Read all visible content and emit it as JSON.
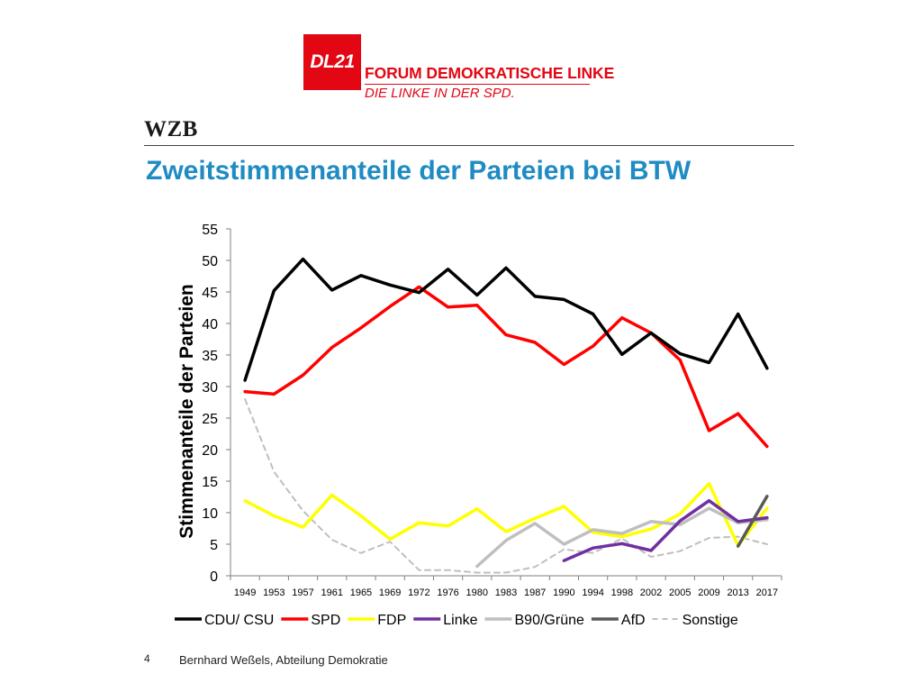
{
  "logo": {
    "mark": "DL21",
    "title": "FORUM DEMOKRATISCHE LINKE",
    "subtitle": "DIE LINKE IN DER SPD.",
    "color": "#e30613"
  },
  "header": {
    "org": "WZB"
  },
  "page_title": "Zweitstimmenanteile der Parteien bei BTW",
  "footer": {
    "page_number": "4",
    "author": "Bernhard Weßels, Abteilung Demokratie"
  },
  "chart_data": {
    "type": "line",
    "title": "",
    "xlabel": "",
    "ylabel": "Stimmenanteile der Parteien",
    "ylim": [
      0,
      55
    ],
    "yticks": [
      0,
      5,
      10,
      15,
      20,
      25,
      30,
      35,
      40,
      45,
      50,
      55
    ],
    "grid": false,
    "legend_position": "bottom",
    "categories": [
      "1949",
      "1953",
      "1957",
      "1961",
      "1965",
      "1969",
      "1972",
      "1976",
      "1980",
      "1983",
      "1987",
      "1990",
      "1994",
      "1998",
      "2002",
      "2005",
      "2009",
      "2013",
      "2017"
    ],
    "series": [
      {
        "name": "CDU/ CSU",
        "color": "#000000",
        "dashed": false,
        "values": [
          31.0,
          45.2,
          50.2,
          45.3,
          47.6,
          46.1,
          44.9,
          48.6,
          44.5,
          48.8,
          44.3,
          43.8,
          41.5,
          35.1,
          38.5,
          35.2,
          33.8,
          41.5,
          32.9
        ]
      },
      {
        "name": "SPD",
        "color": "#ff0000",
        "dashed": false,
        "values": [
          29.2,
          28.8,
          31.8,
          36.2,
          39.3,
          42.7,
          45.8,
          42.6,
          42.9,
          38.2,
          37.0,
          33.5,
          36.4,
          40.9,
          38.5,
          34.2,
          23.0,
          25.7,
          20.5
        ]
      },
      {
        "name": "FDP",
        "color": "#ffff00",
        "dashed": false,
        "values": [
          11.9,
          9.5,
          7.7,
          12.8,
          9.5,
          5.8,
          8.4,
          7.9,
          10.6,
          7.0,
          9.1,
          11.0,
          6.9,
          6.2,
          7.4,
          9.8,
          14.6,
          4.8,
          10.7
        ]
      },
      {
        "name": "Linke",
        "color": "#7030a0",
        "dashed": false,
        "values": [
          null,
          null,
          null,
          null,
          null,
          null,
          null,
          null,
          null,
          null,
          null,
          2.4,
          4.4,
          5.1,
          4.0,
          8.7,
          11.9,
          8.6,
          9.2
        ]
      },
      {
        "name": "B90/Grüne",
        "color": "#bfbfbf",
        "dashed": false,
        "values": [
          null,
          null,
          null,
          null,
          null,
          null,
          null,
          null,
          1.5,
          5.6,
          8.3,
          5.0,
          7.3,
          6.7,
          8.6,
          8.1,
          10.7,
          8.4,
          8.9
        ]
      },
      {
        "name": "AfD",
        "color": "#595959",
        "dashed": false,
        "values": [
          null,
          null,
          null,
          null,
          null,
          null,
          null,
          null,
          null,
          null,
          null,
          null,
          null,
          null,
          null,
          null,
          null,
          4.7,
          12.6
        ]
      },
      {
        "name": "Sonstige",
        "color": "#bfbfbf",
        "dashed": true,
        "values": [
          28.0,
          16.5,
          10.3,
          5.7,
          3.6,
          5.4,
          0.9,
          0.9,
          0.5,
          0.5,
          1.4,
          4.2,
          3.6,
          5.9,
          3.0,
          3.9,
          6.0,
          6.2,
          5.0
        ]
      }
    ]
  }
}
